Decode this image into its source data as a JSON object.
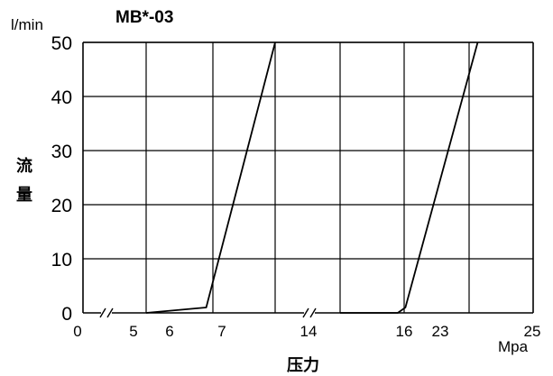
{
  "chart_data": {
    "type": "line",
    "title": "MB*-03",
    "y_unit": "l/min",
    "ylabel_chars": [
      "流",
      "量"
    ],
    "x_unit": "Mpa",
    "xlabel": "压力",
    "ylim": [
      0,
      50
    ],
    "y_ticks": [
      "0",
      "10",
      "20",
      "30",
      "40",
      "50"
    ],
    "x_ticks": [
      "0",
      "5",
      "6",
      "7",
      "14",
      "16",
      "23",
      "25"
    ],
    "grid": true,
    "axis_breaks": 2,
    "panels": [
      {
        "x_range": [
          5,
          14
        ],
        "series": [
          {
            "x": [
              5,
              6,
              6.9,
              11
            ],
            "y": [
              0,
              0,
              1,
              50
            ]
          }
        ]
      },
      {
        "x_range": [
          14,
          25
        ],
        "series": [
          {
            "x": [
              14,
              15.8,
              16.3,
              23.9
            ],
            "y": [
              0,
              0,
              1,
              50
            ]
          }
        ]
      }
    ]
  }
}
